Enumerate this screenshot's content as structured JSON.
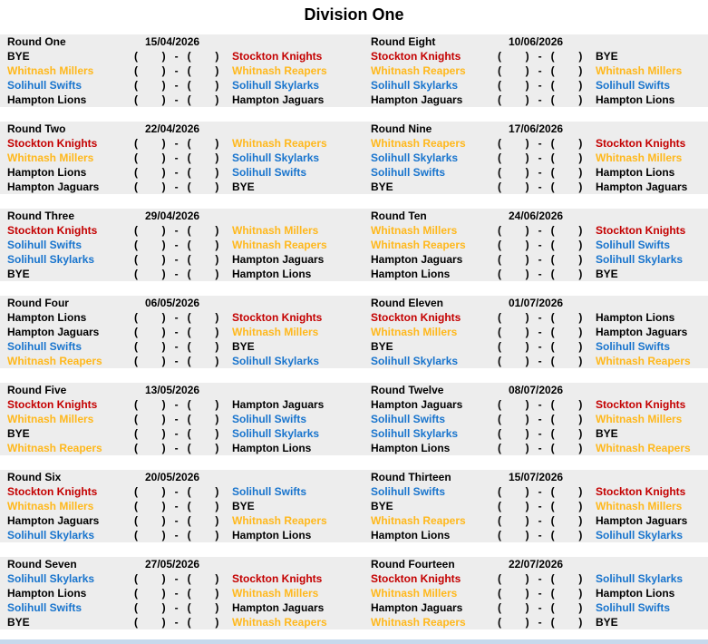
{
  "title": "Division One",
  "score_placeholder": "(        )   -   (        )",
  "colors": {
    "band_bg": "#EDEDED",
    "page_bg": "#FFFFFF",
    "bottom_strip": "#C7D9EC",
    "red": "#C40000",
    "gold": "#FFB81C",
    "blue": "#1874CD",
    "black": "#000000"
  },
  "team_colors": {
    "Stockton Knights": "#C40000",
    "Whitnash Millers": "#FFB81C",
    "Whitnash Reapers": "#FFB81C",
    "Solihull Swifts": "#1874CD",
    "Solihull Skylarks": "#1874CD",
    "Hampton Lions": "#000000",
    "Hampton Jaguars": "#000000",
    "BYE": "#000000"
  },
  "rounds": [
    {
      "name": "Round One",
      "date": "15/04/2026",
      "fixtures": [
        {
          "home": "BYE",
          "away": "Stockton Knights"
        },
        {
          "home": "Whitnash Millers",
          "away": "Whitnash Reapers"
        },
        {
          "home": "Solihull Swifts",
          "away": "Solihull Skylarks"
        },
        {
          "home": "Hampton Lions",
          "away": "Hampton Jaguars"
        }
      ]
    },
    {
      "name": "Round Two",
      "date": "22/04/2026",
      "fixtures": [
        {
          "home": "Stockton Knights",
          "away": "Whitnash Reapers"
        },
        {
          "home": "Whitnash Millers",
          "away": "Solihull Skylarks"
        },
        {
          "home": "Hampton Lions",
          "away": "Solihull Swifts"
        },
        {
          "home": "Hampton Jaguars",
          "away": "BYE"
        }
      ]
    },
    {
      "name": "Round Three",
      "date": "29/04/2026",
      "fixtures": [
        {
          "home": "Stockton Knights",
          "away": "Whitnash Millers"
        },
        {
          "home": "Solihull Swifts",
          "away": "Whitnash Reapers"
        },
        {
          "home": "Solihull Skylarks",
          "away": "Hampton Jaguars"
        },
        {
          "home": "BYE",
          "away": "Hampton Lions"
        }
      ]
    },
    {
      "name": "Round Four",
      "date": "06/05/2026",
      "fixtures": [
        {
          "home": "Hampton Lions",
          "away": "Stockton Knights"
        },
        {
          "home": "Hampton Jaguars",
          "away": "Whitnash Millers"
        },
        {
          "home": "Solihull Swifts",
          "away": "BYE"
        },
        {
          "home": "Whitnash Reapers",
          "away": "Solihull Skylarks"
        }
      ]
    },
    {
      "name": "Round Five",
      "date": "13/05/2026",
      "fixtures": [
        {
          "home": "Stockton Knights",
          "away": "Hampton Jaguars"
        },
        {
          "home": "Whitnash Millers",
          "away": "Solihull Swifts"
        },
        {
          "home": "BYE",
          "away": "Solihull Skylarks"
        },
        {
          "home": "Whitnash Reapers",
          "away": "Hampton Lions"
        }
      ]
    },
    {
      "name": "Round Six",
      "date": "20/05/2026",
      "fixtures": [
        {
          "home": "Stockton Knights",
          "away": "Solihull Swifts"
        },
        {
          "home": "Whitnash Millers",
          "away": "BYE"
        },
        {
          "home": "Hampton Jaguars",
          "away": "Whitnash Reapers"
        },
        {
          "home": "Solihull Skylarks",
          "away": "Hampton Lions"
        }
      ]
    },
    {
      "name": "Round Seven",
      "date": "27/05/2026",
      "fixtures": [
        {
          "home": "Solihull Skylarks",
          "away": "Stockton Knights"
        },
        {
          "home": "Hampton Lions",
          "away": "Whitnash Millers"
        },
        {
          "home": "Solihull Swifts",
          "away": "Hampton Jaguars"
        },
        {
          "home": "BYE",
          "away": "Whitnash Reapers"
        }
      ]
    },
    {
      "name": "Round Eight",
      "date": "10/06/2026",
      "fixtures": [
        {
          "home": "Stockton Knights",
          "away": "BYE"
        },
        {
          "home": "Whitnash Reapers",
          "away": "Whitnash Millers"
        },
        {
          "home": "Solihull Skylarks",
          "away": "Solihull Swifts"
        },
        {
          "home": "Hampton Jaguars",
          "away": "Hampton Lions"
        }
      ]
    },
    {
      "name": "Round Nine",
      "date": "17/06/2026",
      "fixtures": [
        {
          "home": "Whitnash Reapers",
          "away": "Stockton Knights"
        },
        {
          "home": "Solihull Skylarks",
          "away": "Whitnash Millers"
        },
        {
          "home": "Solihull Swifts",
          "away": "Hampton Lions"
        },
        {
          "home": "BYE",
          "away": "Hampton Jaguars"
        }
      ]
    },
    {
      "name": "Round Ten",
      "date": "24/06/2026",
      "fixtures": [
        {
          "home": "Whitnash Millers",
          "away": "Stockton Knights"
        },
        {
          "home": "Whitnash Reapers",
          "away": "Solihull Swifts"
        },
        {
          "home": "Hampton Jaguars",
          "away": "Solihull Skylarks"
        },
        {
          "home": "Hampton Lions",
          "away": "BYE"
        }
      ]
    },
    {
      "name": "Round Eleven",
      "date": "01/07/2026",
      "fixtures": [
        {
          "home": "Stockton Knights",
          "away": "Hampton Lions"
        },
        {
          "home": "Whitnash Millers",
          "away": "Hampton Jaguars"
        },
        {
          "home": "BYE",
          "away": "Solihull Swifts"
        },
        {
          "home": "Solihull Skylarks",
          "away": "Whitnash Reapers"
        }
      ]
    },
    {
      "name": "Round Twelve",
      "date": "08/07/2026",
      "fixtures": [
        {
          "home": "Hampton Jaguars",
          "away": "Stockton Knights"
        },
        {
          "home": "Solihull Swifts",
          "away": "Whitnash Millers"
        },
        {
          "home": "Solihull Skylarks",
          "away": "BYE"
        },
        {
          "home": "Hampton Lions",
          "away": "Whitnash Reapers"
        }
      ]
    },
    {
      "name": "Round Thirteen",
      "date": "15/07/2026",
      "fixtures": [
        {
          "home": "Solihull Swifts",
          "away": "Stockton Knights"
        },
        {
          "home": "BYE",
          "away": "Whitnash Millers"
        },
        {
          "home": "Whitnash Reapers",
          "away": "Hampton Jaguars"
        },
        {
          "home": "Hampton Lions",
          "away": "Solihull Skylarks"
        }
      ]
    },
    {
      "name": "Round Fourteen",
      "date": "22/07/2026",
      "fixtures": [
        {
          "home": "Stockton Knights",
          "away": "Solihull Skylarks"
        },
        {
          "home": "Whitnash Millers",
          "away": "Hampton Lions"
        },
        {
          "home": "Hampton Jaguars",
          "away": "Solihull Swifts"
        },
        {
          "home": "Whitnash Reapers",
          "away": "BYE"
        }
      ]
    }
  ]
}
